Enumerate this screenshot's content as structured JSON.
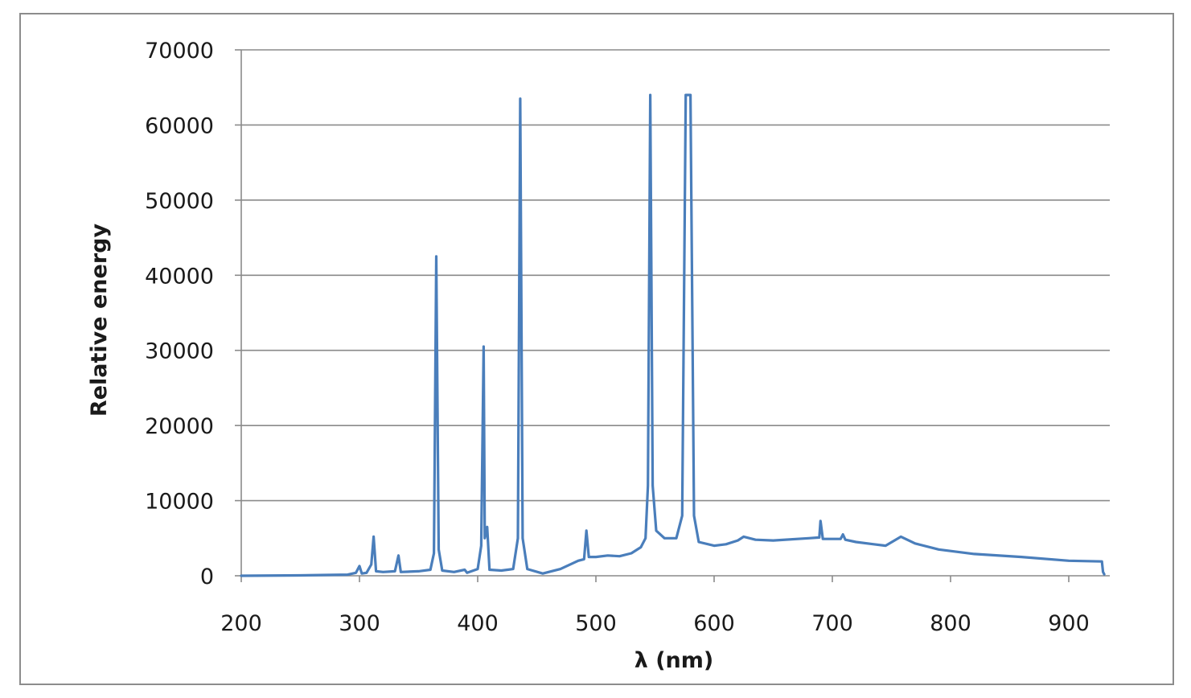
{
  "chart_data": {
    "type": "line",
    "title": "",
    "xlabel": "λ (nm)",
    "ylabel": "Relative energy",
    "xlim": [
      200,
      932
    ],
    "ylim": [
      0,
      70000
    ],
    "x_ticks": [
      "200",
      "300",
      "400",
      "500",
      "600",
      "700",
      "800",
      "900"
    ],
    "y_ticks": [
      "0",
      "10000",
      "20000",
      "30000",
      "40000",
      "50000",
      "60000",
      "70000"
    ],
    "grid": "horizontal",
    "legend": "none",
    "series": [
      {
        "color": "#4a7ebb",
        "points": [
          [
            200,
            0
          ],
          [
            250,
            50
          ],
          [
            290,
            150
          ],
          [
            297,
            400
          ],
          [
            300,
            1300
          ],
          [
            302,
            300
          ],
          [
            306,
            400
          ],
          [
            310,
            1500
          ],
          [
            312,
            5200
          ],
          [
            314,
            600
          ],
          [
            320,
            500
          ],
          [
            330,
            600
          ],
          [
            333,
            2700
          ],
          [
            335,
            500
          ],
          [
            350,
            600
          ],
          [
            360,
            800
          ],
          [
            363,
            3000
          ],
          [
            365,
            42500
          ],
          [
            367,
            3500
          ],
          [
            370,
            700
          ],
          [
            380,
            500
          ],
          [
            389,
            800
          ],
          [
            391,
            400
          ],
          [
            400,
            900
          ],
          [
            403,
            4000
          ],
          [
            405,
            30500
          ],
          [
            406,
            5000
          ],
          [
            408,
            6500
          ],
          [
            410,
            800
          ],
          [
            420,
            700
          ],
          [
            430,
            900
          ],
          [
            434,
            5000
          ],
          [
            436,
            63500
          ],
          [
            438,
            5000
          ],
          [
            442,
            900
          ],
          [
            455,
            300
          ],
          [
            470,
            900
          ],
          [
            485,
            2000
          ],
          [
            490,
            2200
          ],
          [
            492,
            6000
          ],
          [
            494,
            2500
          ],
          [
            500,
            2500
          ],
          [
            510,
            2700
          ],
          [
            520,
            2600
          ],
          [
            530,
            3000
          ],
          [
            538,
            3800
          ],
          [
            542,
            5000
          ],
          [
            544,
            12000
          ],
          [
            546,
            64000
          ],
          [
            548,
            12000
          ],
          [
            551,
            6000
          ],
          [
            558,
            5000
          ],
          [
            568,
            5000
          ],
          [
            573,
            8000
          ],
          [
            576,
            64000
          ],
          [
            580,
            64000
          ],
          [
            583,
            8000
          ],
          [
            587,
            4500
          ],
          [
            600,
            4000
          ],
          [
            610,
            4200
          ],
          [
            620,
            4700
          ],
          [
            625,
            5200
          ],
          [
            635,
            4800
          ],
          [
            650,
            4700
          ],
          [
            680,
            5000
          ],
          [
            689,
            5100
          ],
          [
            690,
            7300
          ],
          [
            692,
            4900
          ],
          [
            707,
            4900
          ],
          [
            709,
            5500
          ],
          [
            711,
            4800
          ],
          [
            720,
            4500
          ],
          [
            735,
            4200
          ],
          [
            745,
            4000
          ],
          [
            758,
            5200
          ],
          [
            770,
            4300
          ],
          [
            790,
            3500
          ],
          [
            820,
            2900
          ],
          [
            860,
            2500
          ],
          [
            900,
            2000
          ],
          [
            928,
            1900
          ],
          [
            929,
            500
          ],
          [
            930,
            200
          ]
        ]
      }
    ]
  }
}
